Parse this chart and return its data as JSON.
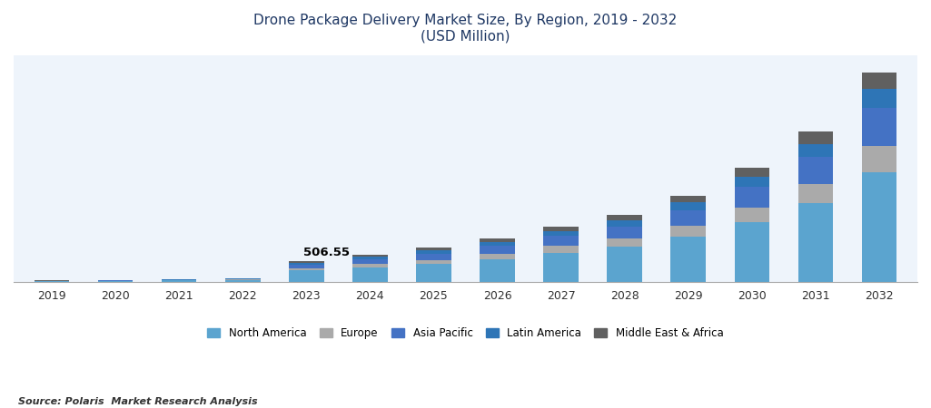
{
  "title_line1": "Drone Package Delivery Market Size, By Region, 2019 - 2032",
  "title_line2": "(USD Million)",
  "source": "Source: Polaris  Market Research Analysis",
  "years": [
    2019,
    2020,
    2021,
    2022,
    2023,
    2024,
    2025,
    2026,
    2027,
    2028,
    2029,
    2030,
    2031,
    2032
  ],
  "regions": [
    "North America",
    "Europe",
    "Asia Pacific",
    "Latin America",
    "Middle East & Africa"
  ],
  "colors": [
    "#5BA4CF",
    "#AAAAAA",
    "#4472C4",
    "#2E75B6",
    "#606060"
  ],
  "data": {
    "North America": [
      14,
      20,
      28,
      40,
      270,
      350,
      430,
      540,
      700,
      850,
      1100,
      1450,
      1900,
      2650
    ],
    "Europe": [
      4,
      6,
      8,
      11,
      60,
      80,
      100,
      130,
      165,
      200,
      260,
      350,
      460,
      640
    ],
    "Asia Pacific": [
      5,
      7,
      10,
      14,
      90,
      120,
      155,
      195,
      245,
      295,
      380,
      500,
      660,
      920
    ],
    "Latin America": [
      2,
      3,
      5,
      7,
      45,
      58,
      75,
      95,
      120,
      145,
      185,
      245,
      325,
      455
    ],
    "Middle East & Africa": [
      2,
      3,
      4,
      5,
      42,
      55,
      65,
      82,
      105,
      130,
      165,
      220,
      295,
      415
    ]
  },
  "annotation_text": "506.55",
  "annotation_year": 2023,
  "bar_width": 0.55,
  "background_color": "#EEF4FB",
  "title_color": "#1F3864",
  "tick_color": "#333333"
}
